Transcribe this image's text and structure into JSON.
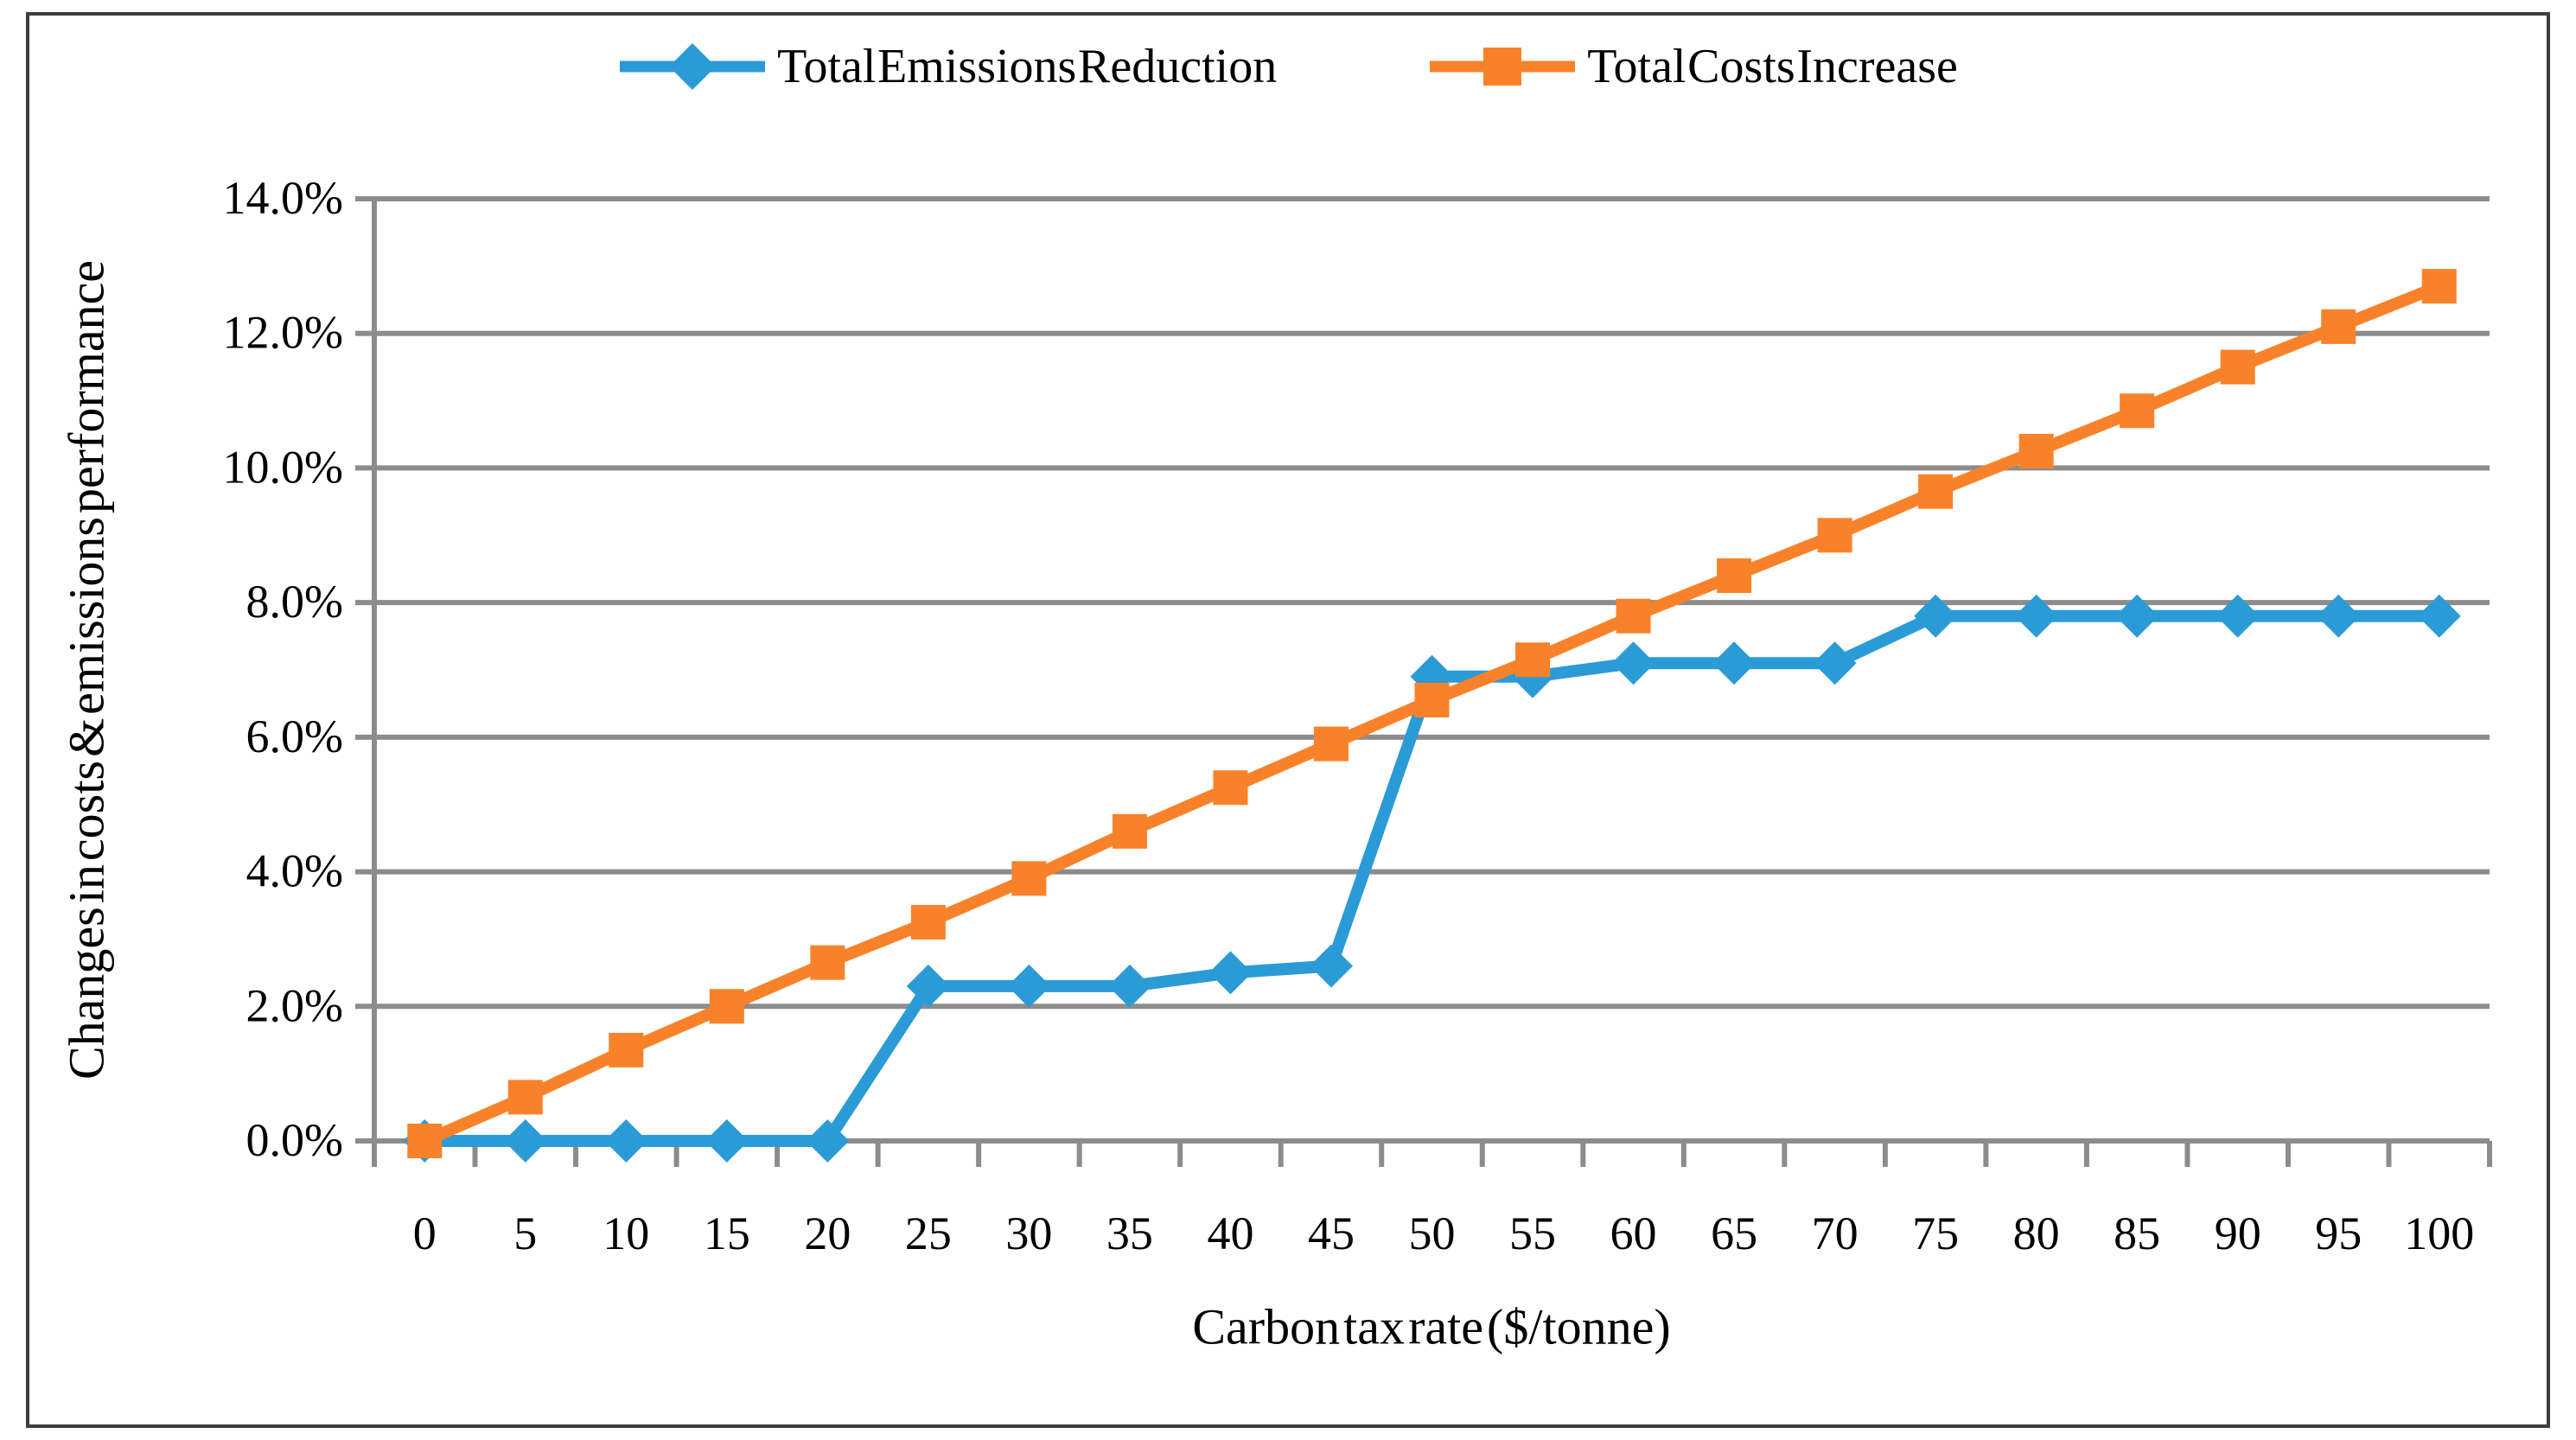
{
  "chart_data": {
    "type": "line",
    "x": [
      0,
      5,
      10,
      15,
      20,
      25,
      30,
      35,
      40,
      45,
      50,
      55,
      60,
      65,
      70,
      75,
      80,
      85,
      90,
      95,
      100
    ],
    "series": [
      {
        "name": "Total Emissions Reduction",
        "color": "#2b9bd7",
        "marker": "diamond",
        "values": [
          0.0,
          0.0,
          0.0,
          0.0,
          0.0,
          2.3,
          2.3,
          2.3,
          2.5,
          2.6,
          6.9,
          6.9,
          7.1,
          7.1,
          7.1,
          7.8,
          7.8,
          7.8,
          7.8,
          7.8,
          7.8
        ]
      },
      {
        "name": "Total Costs Increase",
        "color": "#f8822a",
        "marker": "square",
        "values": [
          0.0,
          0.65,
          1.35,
          2.0,
          2.65,
          3.25,
          3.9,
          4.6,
          5.25,
          5.9,
          6.55,
          7.15,
          7.8,
          8.4,
          9.0,
          9.65,
          10.25,
          10.85,
          11.5,
          12.1,
          12.7
        ]
      }
    ],
    "xlabel": "Carbon tax rate ($/tonne)",
    "ylabel": "Changes in costs & emissions performance",
    "ylim": [
      0,
      14
    ],
    "y_tick_step": 2,
    "y_ticks": [
      "0.0%",
      "2.0%",
      "4.0%",
      "6.0%",
      "8.0%",
      "10.0%",
      "12.0%",
      "14.0%"
    ],
    "grid": true,
    "legend_position": "top"
  },
  "styles": {
    "gridline_color": "#8c8c8c",
    "axis_color": "#8c8c8c",
    "border_color": "#3d3d3d",
    "background": "#ffffff"
  }
}
